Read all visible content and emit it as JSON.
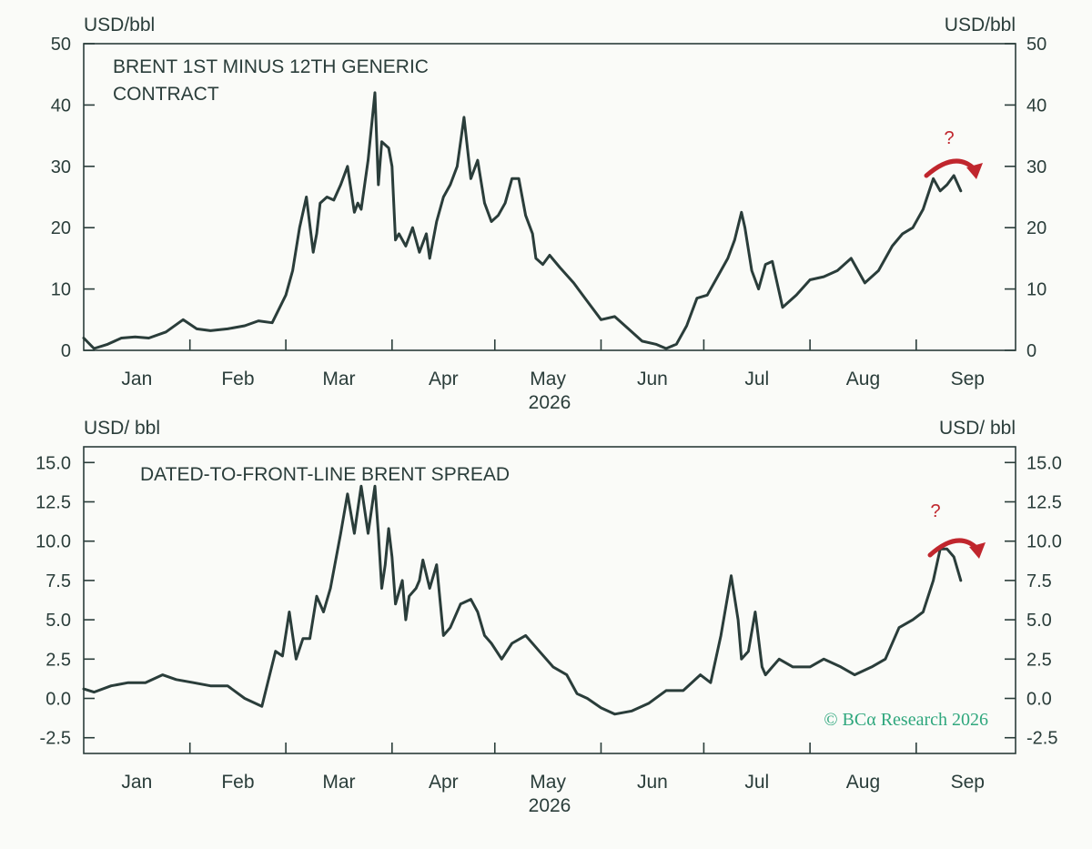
{
  "chart_data": [
    {
      "type": "line",
      "title": "BRENT 1ST MINUS 12TH GENERIC CONTRACT",
      "title_lines": [
        "BRENT 1ST MINUS 12TH GENERIC",
        "CONTRACT"
      ],
      "ylabel_left": "USD/bbl",
      "ylabel_right": "USD/bbl",
      "ylim": [
        0,
        50
      ],
      "yticks": [
        "0",
        "10",
        "20",
        "30",
        "40",
        "50"
      ],
      "ytick_values": [
        0,
        10,
        20,
        30,
        40,
        50
      ],
      "xlim": [
        "2026-01-01",
        "2026-09-30"
      ],
      "month_labels": [
        "Jan",
        "Feb",
        "Mar",
        "Apr",
        "May",
        "Jun",
        "Jul",
        "Aug",
        "Sep"
      ],
      "year_label": "2026",
      "annotation": "?",
      "grid": false,
      "series": [
        {
          "x": [
            "2026-01-01",
            "2026-01-04",
            "2026-01-08",
            "2026-01-12",
            "2026-01-16",
            "2026-01-20",
            "2026-01-25",
            "2026-01-30",
            "2026-02-03",
            "2026-02-07",
            "2026-02-12",
            "2026-02-17",
            "2026-02-21",
            "2026-02-25",
            "2026-03-01",
            "2026-03-03",
            "2026-03-05",
            "2026-03-07",
            "2026-03-09",
            "2026-03-10",
            "2026-03-11",
            "2026-03-13",
            "2026-03-15",
            "2026-03-17",
            "2026-03-19",
            "2026-03-21",
            "2026-03-22",
            "2026-03-23",
            "2026-03-25",
            "2026-03-27",
            "2026-03-28",
            "2026-03-29",
            "2026-03-31",
            "2026-04-01",
            "2026-04-02",
            "2026-04-03",
            "2026-04-05",
            "2026-04-07",
            "2026-04-09",
            "2026-04-11",
            "2026-04-12",
            "2026-04-14",
            "2026-04-16",
            "2026-04-18",
            "2026-04-20",
            "2026-04-22",
            "2026-04-24",
            "2026-04-26",
            "2026-04-28",
            "2026-04-30",
            "2026-05-02",
            "2026-05-04",
            "2026-05-06",
            "2026-05-08",
            "2026-05-10",
            "2026-05-12",
            "2026-05-13",
            "2026-05-15",
            "2026-05-17",
            "2026-05-20",
            "2026-05-24",
            "2026-05-28",
            "2026-06-01",
            "2026-06-05",
            "2026-06-09",
            "2026-06-13",
            "2026-06-17",
            "2026-06-20",
            "2026-06-23",
            "2026-06-26",
            "2026-06-29",
            "2026-07-02",
            "2026-07-05",
            "2026-07-08",
            "2026-07-10",
            "2026-07-12",
            "2026-07-13",
            "2026-07-15",
            "2026-07-17",
            "2026-07-19",
            "2026-07-21",
            "2026-07-24",
            "2026-07-28",
            "2026-08-01",
            "2026-08-05",
            "2026-08-09",
            "2026-08-13",
            "2026-08-17",
            "2026-08-21",
            "2026-08-25",
            "2026-08-28",
            "2026-08-31",
            "2026-09-03",
            "2026-09-06",
            "2026-09-08",
            "2026-09-10",
            "2026-09-12",
            "2026-09-14"
          ],
          "y": [
            2.0,
            0.3,
            1.0,
            2.0,
            2.2,
            2.0,
            3.0,
            5.0,
            3.5,
            3.2,
            3.5,
            4.0,
            4.8,
            4.5,
            9.0,
            13.0,
            20.0,
            25.0,
            16.0,
            19.0,
            24.0,
            25.0,
            24.5,
            27.0,
            30.0,
            22.5,
            24.0,
            23.0,
            31.0,
            42.0,
            27.0,
            34.0,
            33.0,
            30.0,
            18.0,
            19.0,
            17.0,
            20.0,
            16.0,
            19.0,
            15.0,
            21.0,
            25.0,
            27.0,
            30.0,
            38.0,
            28.0,
            31.0,
            24.0,
            21.0,
            22.0,
            24.0,
            28.0,
            28.0,
            22.0,
            19.0,
            15.0,
            14.0,
            15.5,
            13.5,
            11.0,
            8.0,
            5.0,
            5.5,
            3.5,
            1.5,
            1.0,
            0.3,
            1.0,
            4.0,
            8.5,
            9.0,
            12.0,
            15.0,
            18.0,
            22.5,
            20.0,
            13.0,
            10.0,
            14.0,
            14.5,
            7.0,
            9.0,
            11.5,
            12.0,
            13.0,
            15.0,
            11.0,
            13.0,
            17.0,
            19.0,
            20.0,
            23.0,
            28.0,
            26.0,
            27.0,
            28.5,
            26.0
          ]
        }
      ]
    },
    {
      "type": "line",
      "title": "DATED-TO-FRONT-LINE BRENT SPREAD",
      "ylabel_left": "USD/ bbl",
      "ylabel_right": "USD/ bbl",
      "ylim": [
        -3.5,
        16
      ],
      "yticks": [
        "-2.5",
        "0.0",
        "2.5",
        "5.0",
        "7.5",
        "10.0",
        "12.5",
        "15.0"
      ],
      "ytick_values": [
        -2.5,
        0,
        2.5,
        5,
        7.5,
        10,
        12.5,
        15
      ],
      "xlim": [
        "2026-01-01",
        "2026-09-30"
      ],
      "month_labels": [
        "Jan",
        "Feb",
        "Mar",
        "Apr",
        "May",
        "Jun",
        "Jul",
        "Aug",
        "Sep"
      ],
      "year_label": "2026",
      "annotation": "?",
      "credit": "© BCα Research 2026",
      "grid": false,
      "series": [
        {
          "x": [
            "2026-01-01",
            "2026-01-04",
            "2026-01-09",
            "2026-01-14",
            "2026-01-19",
            "2026-01-24",
            "2026-01-28",
            "2026-02-02",
            "2026-02-07",
            "2026-02-12",
            "2026-02-17",
            "2026-02-22",
            "2026-02-26",
            "2026-02-28",
            "2026-03-02",
            "2026-03-04",
            "2026-03-06",
            "2026-03-08",
            "2026-03-10",
            "2026-03-12",
            "2026-03-14",
            "2026-03-17",
            "2026-03-19",
            "2026-03-21",
            "2026-03-23",
            "2026-03-25",
            "2026-03-27",
            "2026-03-28",
            "2026-03-29",
            "2026-03-30",
            "2026-03-31",
            "2026-04-01",
            "2026-04-02",
            "2026-04-04",
            "2026-04-05",
            "2026-04-06",
            "2026-04-08",
            "2026-04-09",
            "2026-04-10",
            "2026-04-12",
            "2026-04-14",
            "2026-04-16",
            "2026-04-18",
            "2026-04-21",
            "2026-04-24",
            "2026-04-26",
            "2026-04-28",
            "2026-04-30",
            "2026-05-03",
            "2026-05-06",
            "2026-05-10",
            "2026-05-14",
            "2026-05-18",
            "2026-05-22",
            "2026-05-25",
            "2026-05-28",
            "2026-06-01",
            "2026-06-05",
            "2026-06-10",
            "2026-06-15",
            "2026-06-20",
            "2026-06-25",
            "2026-06-30",
            "2026-07-03",
            "2026-07-06",
            "2026-07-09",
            "2026-07-11",
            "2026-07-12",
            "2026-07-14",
            "2026-07-16",
            "2026-07-18",
            "2026-07-19",
            "2026-07-21",
            "2026-07-23",
            "2026-07-27",
            "2026-08-01",
            "2026-08-05",
            "2026-08-10",
            "2026-08-14",
            "2026-08-19",
            "2026-08-23",
            "2026-08-27",
            "2026-08-31",
            "2026-09-03",
            "2026-09-06",
            "2026-09-08",
            "2026-09-10",
            "2026-09-12",
            "2026-09-14"
          ],
          "y": [
            0.6,
            0.4,
            0.8,
            1.0,
            1.0,
            1.5,
            1.2,
            1.0,
            0.8,
            0.8,
            0.0,
            -0.5,
            3.0,
            2.7,
            5.5,
            2.5,
            3.8,
            3.8,
            6.5,
            5.5,
            7.0,
            10.5,
            13.0,
            10.5,
            13.5,
            10.5,
            13.5,
            10.5,
            7.0,
            8.5,
            10.8,
            9.0,
            6.0,
            7.5,
            5.0,
            6.5,
            7.0,
            7.5,
            8.8,
            7.0,
            8.5,
            4.0,
            4.5,
            6.0,
            6.3,
            5.5,
            4.0,
            3.5,
            2.5,
            3.5,
            4.0,
            3.0,
            2.0,
            1.5,
            0.3,
            0.0,
            -0.6,
            -1.0,
            -0.8,
            -0.3,
            0.5,
            0.5,
            1.5,
            1.0,
            4.0,
            7.8,
            5.0,
            2.5,
            3.0,
            5.5,
            2.0,
            1.5,
            2.0,
            2.5,
            2.0,
            2.0,
            2.5,
            2.0,
            1.5,
            2.0,
            2.5,
            4.5,
            5.0,
            5.5,
            7.5,
            9.5,
            9.5,
            9.0,
            7.5
          ]
        }
      ]
    }
  ]
}
